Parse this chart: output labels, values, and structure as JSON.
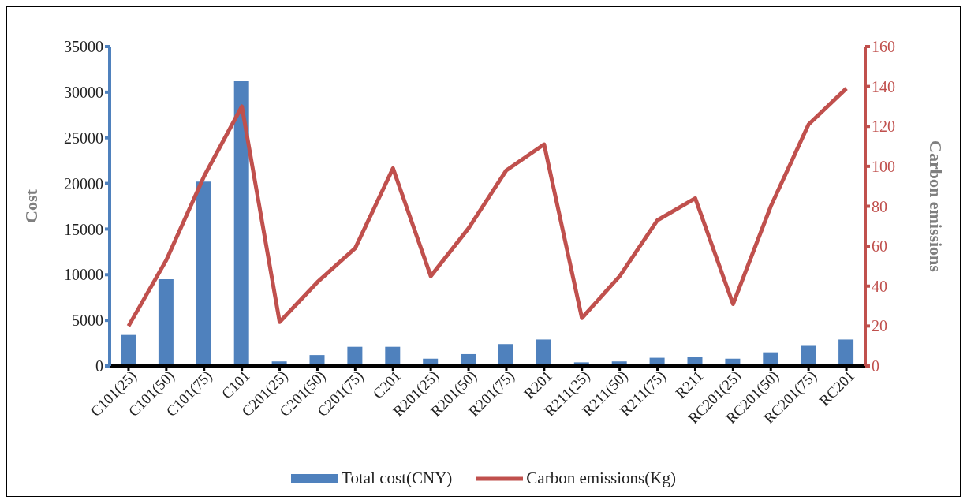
{
  "chart_data": {
    "type": "bar",
    "categories": [
      "C101(25)",
      "C101(50)",
      "C101(75)",
      "C101",
      "C201(25)",
      "C201(50)",
      "C201(75)",
      "C201",
      "R201(25)",
      "R201(50)",
      "R201(75)",
      "R201",
      "R211(25)",
      "R211(50)",
      "R211(75)",
      "R211",
      "RC201(25)",
      "RC201(50)",
      "RC201(75)",
      "RC201"
    ],
    "series": [
      {
        "name": "Total cost(CNY)",
        "color": "#4f81bd",
        "values": [
          3400,
          9500,
          20200,
          31200,
          500,
          1200,
          2100,
          2100,
          800,
          1300,
          2400,
          2900,
          400,
          500,
          900,
          1000,
          800,
          1500,
          2200,
          2900
        ]
      },
      {
        "name": "Carbon emissions(Kg)",
        "type": "line",
        "axis": "y2",
        "color": "#c0504d",
        "values": [
          20,
          53,
          95,
          130,
          22,
          42,
          59,
          99,
          45,
          69,
          98,
          111,
          24,
          45,
          73,
          84,
          31,
          80,
          121,
          139
        ]
      }
    ],
    "ylabel": "Cost",
    "y2label": "Carbon emissions",
    "ylim": [
      0,
      35000
    ],
    "yticks": [
      0,
      5000,
      10000,
      15000,
      20000,
      25000,
      30000,
      35000
    ],
    "y2lim": [
      0,
      160
    ],
    "y2ticks": [
      0,
      20,
      40,
      60,
      80,
      100,
      120,
      140,
      160
    ],
    "grid": false,
    "legend": "bottom",
    "marker": "none",
    "line_style": "solid"
  }
}
